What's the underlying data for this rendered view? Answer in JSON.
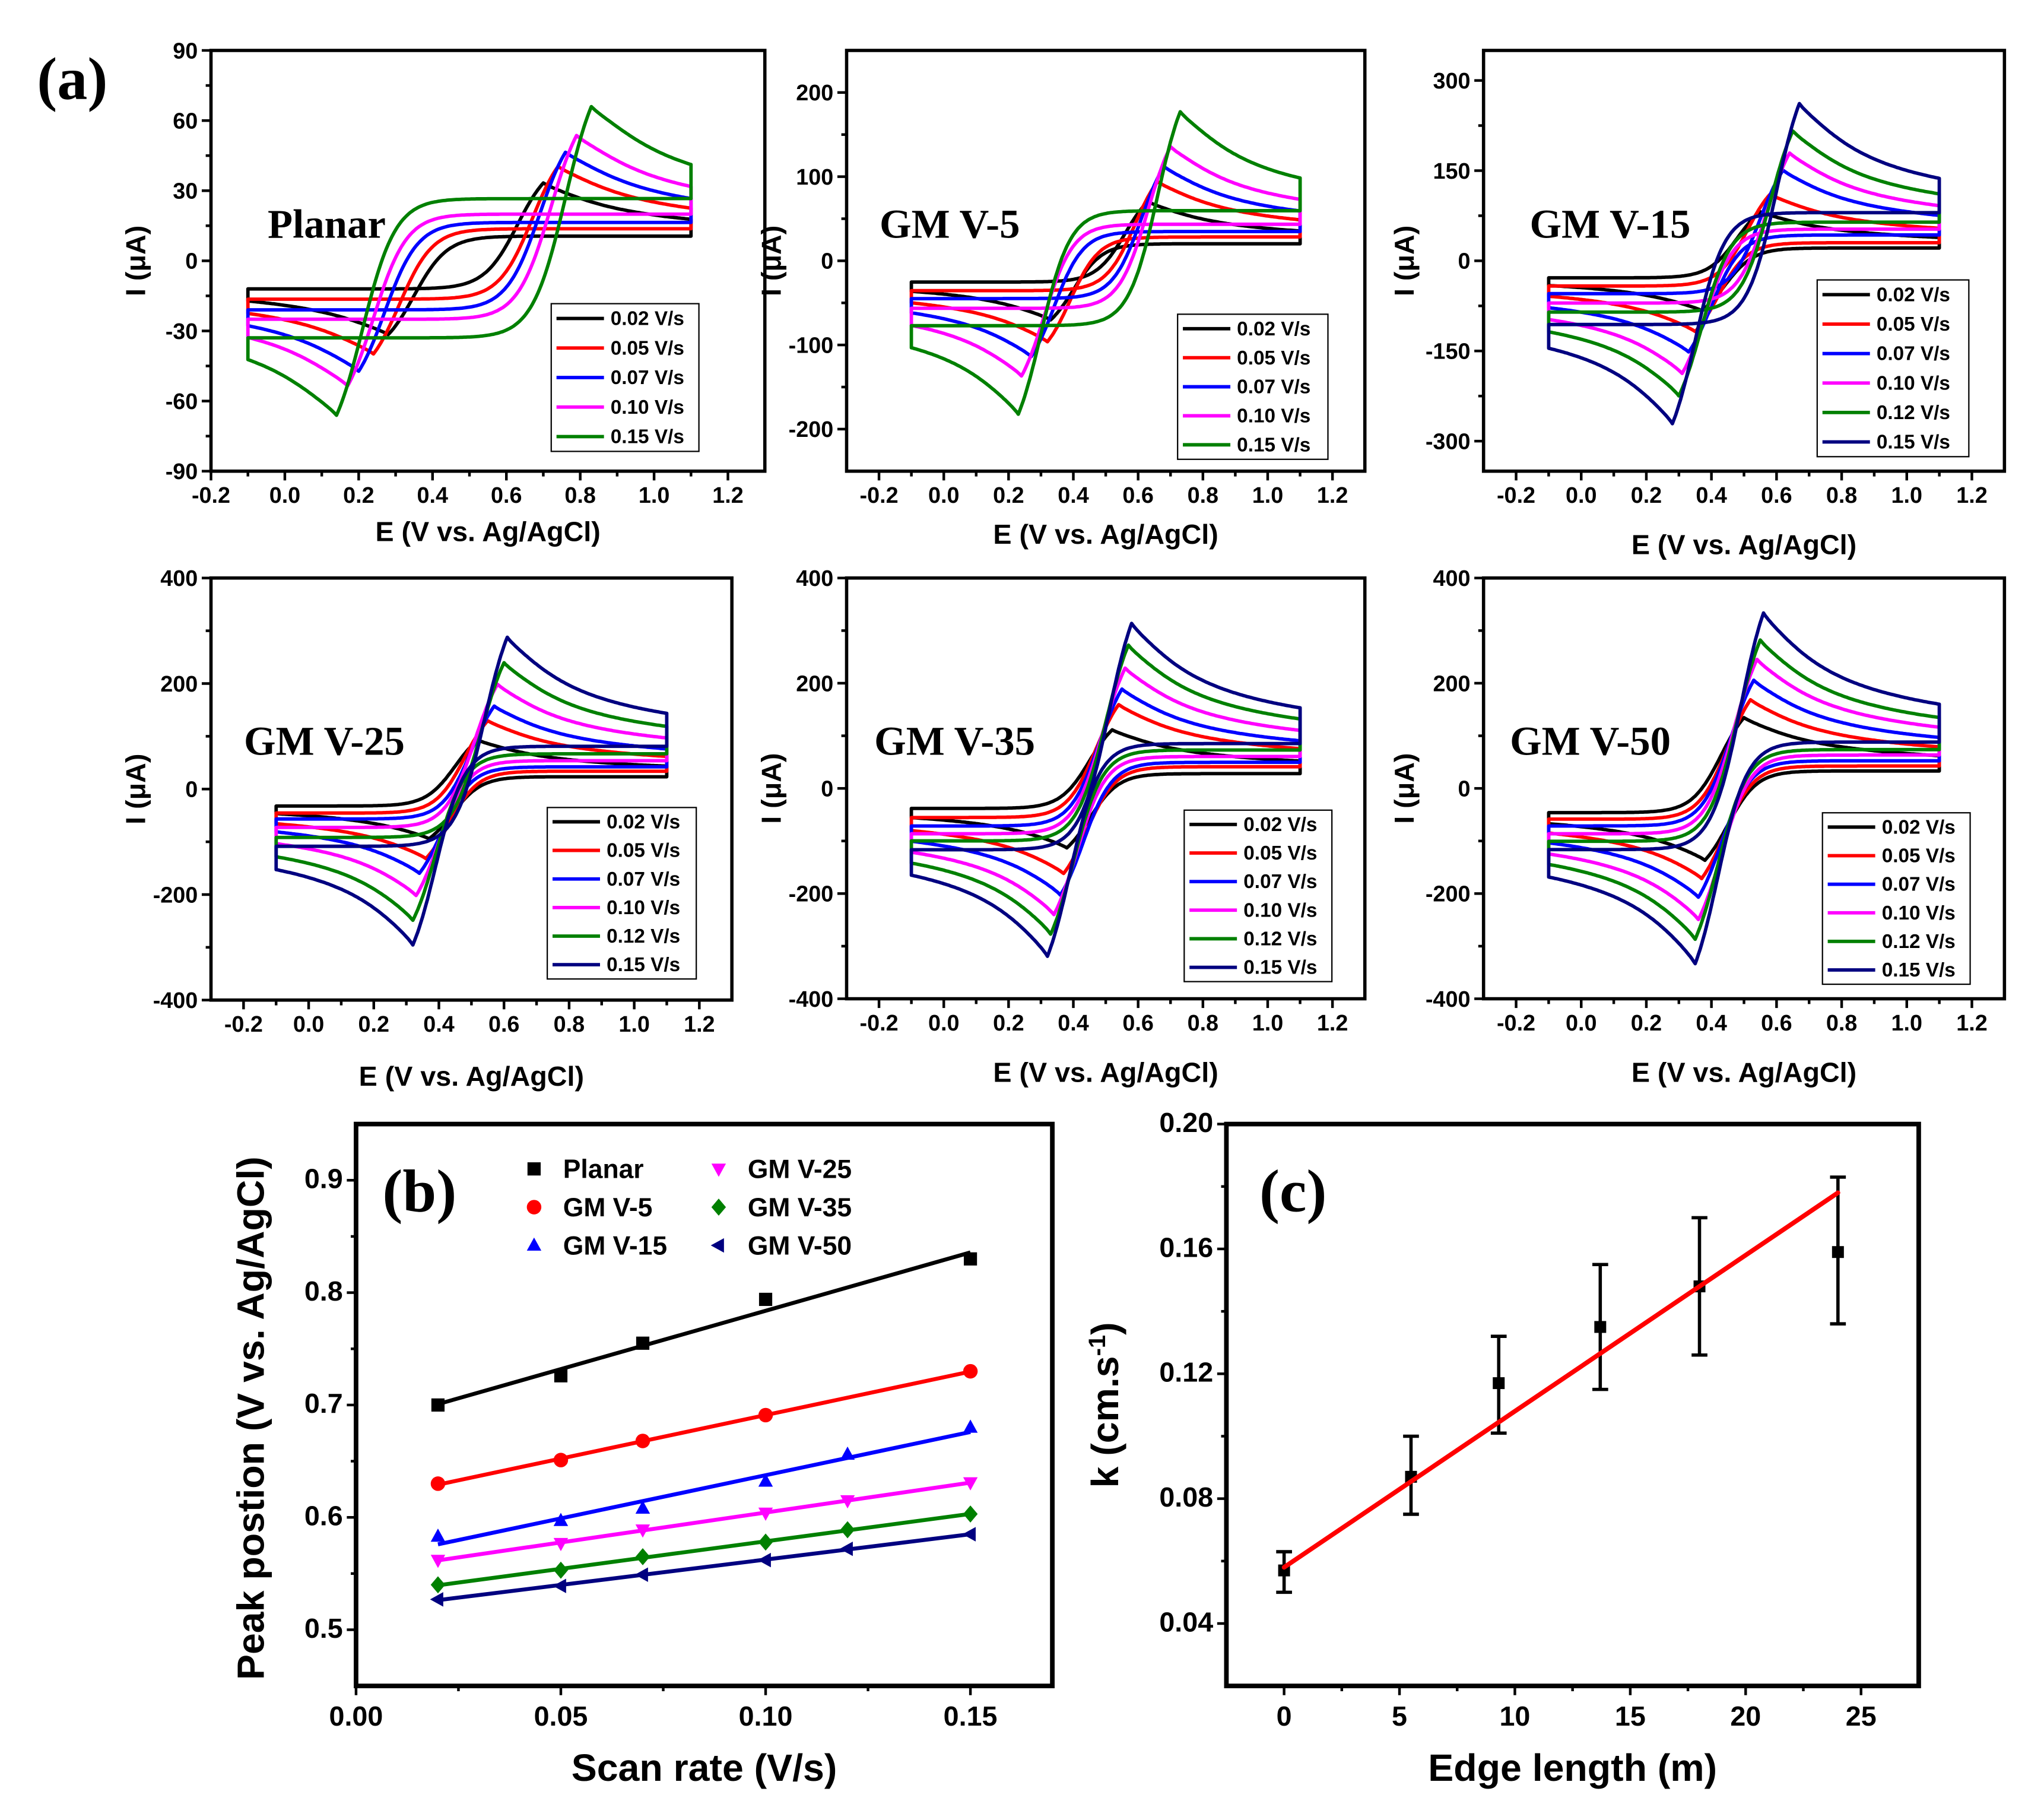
{
  "figure_labels": {
    "a": "(a)",
    "b": "(b)",
    "c": "(c)"
  },
  "chart_data": [
    {
      "type": "line",
      "title": "Planar",
      "xlabel": "E (V vs. Ag/AgCl)",
      "ylabel": "I (μA)",
      "xlim": [
        -0.2,
        1.3
      ],
      "ylim": [
        -90,
        90
      ],
      "xtick_labels": [
        "-0.2",
        "0.0",
        "0.2",
        "0.4",
        "0.6",
        "0.8",
        "1.0",
        "1.2"
      ],
      "ytick_labels": [
        "-90",
        "-60",
        "-30",
        "0",
        "30",
        "60",
        "90"
      ],
      "potential_window": [
        -0.1,
        1.1
      ],
      "legend": "bottom-right",
      "series": [
        {
          "name": "0.02 V/s",
          "color": "#000000",
          "anodic_peak": [
            0.7,
            36
          ],
          "cathodic_peak": [
            0.28,
            -34
          ]
        },
        {
          "name": "0.05 V/s",
          "color": "#ff0000",
          "anodic_peak": [
            0.74,
            44
          ],
          "cathodic_peak": [
            0.24,
            -43
          ]
        },
        {
          "name": "0.07 V/s",
          "color": "#0000ff",
          "anodic_peak": [
            0.76,
            51
          ],
          "cathodic_peak": [
            0.2,
            -51
          ]
        },
        {
          "name": "0.10 V/s",
          "color": "#ff00ff",
          "anodic_peak": [
            0.79,
            59
          ],
          "cathodic_peak": [
            0.17,
            -58
          ]
        },
        {
          "name": "0.15 V/s",
          "color": "#008000",
          "anodic_peak": [
            0.83,
            73
          ],
          "cathodic_peak": [
            0.14,
            -72
          ]
        }
      ]
    },
    {
      "type": "line",
      "title": "GM V-5",
      "xlabel": "E (V vs. Ag/AgCl)",
      "ylabel": "I (μA)",
      "xlim": [
        -0.3,
        1.3
      ],
      "ylim": [
        -250,
        250
      ],
      "xtick_labels": [
        "-0.2",
        "0.0",
        "0.2",
        "0.4",
        "0.6",
        "0.8",
        "1.0",
        "1.2"
      ],
      "ytick_labels": [
        "-200",
        "-100",
        "0",
        "100",
        "200"
      ],
      "potential_window": [
        -0.1,
        1.1
      ],
      "legend": "bottom-right",
      "series": [
        {
          "name": "0.02 V/s",
          "color": "#000000",
          "anodic_peak": [
            0.63,
            76
          ],
          "cathodic_peak": [
            0.33,
            -75
          ]
        },
        {
          "name": "0.05 V/s",
          "color": "#ff0000",
          "anodic_peak": [
            0.66,
            102
          ],
          "cathodic_peak": [
            0.32,
            -103
          ]
        },
        {
          "name": "0.07 V/s",
          "color": "#0000ff",
          "anodic_peak": [
            0.68,
            122
          ],
          "cathodic_peak": [
            0.27,
            -122
          ]
        },
        {
          "name": "0.10 V/s",
          "color": "#ff00ff",
          "anodic_peak": [
            0.7,
            148
          ],
          "cathodic_peak": [
            0.24,
            -147
          ]
        },
        {
          "name": "0.15 V/s",
          "color": "#008000",
          "anodic_peak": [
            0.73,
            194
          ],
          "cathodic_peak": [
            0.23,
            -196
          ]
        }
      ]
    },
    {
      "type": "line",
      "title": "GM V-15",
      "xlabel": "E (V vs. Ag/AgCl)",
      "ylabel": "I (μA)",
      "xlim": [
        -0.3,
        1.3
      ],
      "ylim": [
        -350,
        350
      ],
      "xtick_labels": [
        "-0.2",
        "0.0",
        "0.2",
        "0.4",
        "0.6",
        "0.8",
        "1.0",
        "1.2"
      ],
      "ytick_labels": [
        "-300",
        "-150",
        "0",
        "150",
        "300"
      ],
      "potential_window": [
        -0.1,
        1.1
      ],
      "legend": "bottom-right",
      "series": [
        {
          "name": "0.02 V/s",
          "color": "#000000",
          "anodic_peak": [
            0.55,
            88
          ],
          "cathodic_peak": [
            0.37,
            -88
          ]
        },
        {
          "name": "0.05 V/s",
          "color": "#ff0000",
          "anodic_peak": [
            0.58,
            120
          ],
          "cathodic_peak": [
            0.35,
            -125
          ]
        },
        {
          "name": "0.07 V/s",
          "color": "#0000ff",
          "anodic_peak": [
            0.62,
            163
          ],
          "cathodic_peak": [
            0.33,
            -162
          ]
        },
        {
          "name": "0.10 V/s",
          "color": "#ff00ff",
          "anodic_peak": [
            0.64,
            195
          ],
          "cathodic_peak": [
            0.31,
            -200
          ]
        },
        {
          "name": "0.12 V/s",
          "color": "#008000",
          "anodic_peak": [
            0.65,
            235
          ],
          "cathodic_peak": [
            0.3,
            -240
          ]
        },
        {
          "name": "0.15 V/s",
          "color": "#000080",
          "anodic_peak": [
            0.67,
            285
          ],
          "cathodic_peak": [
            0.28,
            -290
          ]
        }
      ]
    },
    {
      "type": "line",
      "title": "GM V-25",
      "xlabel": "E (V vs. Ag/AgCl)",
      "ylabel": "I (μA)",
      "xlim": [
        -0.3,
        1.3
      ],
      "ylim": [
        -400,
        400
      ],
      "xtick_labels": [
        "-0.2",
        "0.0",
        "0.2",
        "0.4",
        "0.6",
        "0.8",
        "1.0",
        "1.2"
      ],
      "ytick_labels": [
        "-400",
        "-200",
        "0",
        "200",
        "400"
      ],
      "potential_window": [
        -0.1,
        1.1
      ],
      "legend": "bottom-right",
      "series": [
        {
          "name": "0.02 V/s",
          "color": "#000000",
          "anodic_peak": [
            0.52,
            100
          ],
          "cathodic_peak": [
            0.37,
            -100
          ]
        },
        {
          "name": "0.05 V/s",
          "color": "#ff0000",
          "anodic_peak": [
            0.55,
            140
          ],
          "cathodic_peak": [
            0.36,
            -140
          ]
        },
        {
          "name": "0.07 V/s",
          "color": "#0000ff",
          "anodic_peak": [
            0.57,
            170
          ],
          "cathodic_peak": [
            0.34,
            -170
          ]
        },
        {
          "name": "0.10 V/s",
          "color": "#ff00ff",
          "anodic_peak": [
            0.58,
            215
          ],
          "cathodic_peak": [
            0.33,
            -215
          ]
        },
        {
          "name": "0.12 V/s",
          "color": "#008000",
          "anodic_peak": [
            0.6,
            260
          ],
          "cathodic_peak": [
            0.32,
            -265
          ]
        },
        {
          "name": "0.15 V/s",
          "color": "#000080",
          "anodic_peak": [
            0.61,
            312
          ],
          "cathodic_peak": [
            0.32,
            -315
          ]
        }
      ]
    },
    {
      "type": "line",
      "title": "GM V-35",
      "xlabel": "E (V vs. Ag/AgCl)",
      "ylabel": "I (μA)",
      "xlim": [
        -0.3,
        1.3
      ],
      "ylim": [
        -400,
        400
      ],
      "xtick_labels": [
        "-0.2",
        "0.0",
        "0.2",
        "0.4",
        "0.6",
        "0.8",
        "1.0",
        "1.2"
      ],
      "ytick_labels": [
        "-400",
        "-200",
        "0",
        "200",
        "400"
      ],
      "potential_window": [
        -0.1,
        1.1
      ],
      "legend": "bottom-right",
      "series": [
        {
          "name": "0.02 V/s",
          "color": "#000000",
          "anodic_peak": [
            0.52,
            120
          ],
          "cathodic_peak": [
            0.38,
            -120
          ]
        },
        {
          "name": "0.05 V/s",
          "color": "#ff0000",
          "anodic_peak": [
            0.54,
            172
          ],
          "cathodic_peak": [
            0.37,
            -172
          ]
        },
        {
          "name": "0.07 V/s",
          "color": "#0000ff",
          "anodic_peak": [
            0.55,
            205
          ],
          "cathodic_peak": [
            0.36,
            -215
          ]
        },
        {
          "name": "0.10 V/s",
          "color": "#ff00ff",
          "anodic_peak": [
            0.56,
            248
          ],
          "cathodic_peak": [
            0.34,
            -255
          ]
        },
        {
          "name": "0.12 V/s",
          "color": "#008000",
          "anodic_peak": [
            0.57,
            295
          ],
          "cathodic_peak": [
            0.33,
            -295
          ]
        },
        {
          "name": "0.15 V/s",
          "color": "#000080",
          "anodic_peak": [
            0.58,
            340
          ],
          "cathodic_peak": [
            0.32,
            -340
          ]
        }
      ]
    },
    {
      "type": "line",
      "title": "GM V-50",
      "xlabel": "E (V vs. Ag/AgCl)",
      "ylabel": "I (μA)",
      "xlim": [
        -0.3,
        1.3
      ],
      "ylim": [
        -400,
        400
      ],
      "xtick_labels": [
        "-0.2",
        "0.0",
        "0.2",
        "0.4",
        "0.6",
        "0.8",
        "1.0",
        "1.2"
      ],
      "ytick_labels": [
        "-400",
        "-200",
        "0",
        "200",
        "400"
      ],
      "potential_window": [
        -0.1,
        1.1
      ],
      "legend": "bottom-right",
      "series": [
        {
          "name": "0.02 V/s",
          "color": "#000000",
          "anodic_peak": [
            0.5,
            145
          ],
          "cathodic_peak": [
            0.38,
            -145
          ]
        },
        {
          "name": "0.05 V/s",
          "color": "#ff0000",
          "anodic_peak": [
            0.52,
            182
          ],
          "cathodic_peak": [
            0.37,
            -182
          ]
        },
        {
          "name": "0.07 V/s",
          "color": "#0000ff",
          "anodic_peak": [
            0.53,
            222
          ],
          "cathodic_peak": [
            0.36,
            -220
          ]
        },
        {
          "name": "0.10 V/s",
          "color": "#ff00ff",
          "anodic_peak": [
            0.54,
            265
          ],
          "cathodic_peak": [
            0.36,
            -265
          ]
        },
        {
          "name": "0.12 V/s",
          "color": "#008000",
          "anodic_peak": [
            0.55,
            305
          ],
          "cathodic_peak": [
            0.35,
            -305
          ]
        },
        {
          "name": "0.15 V/s",
          "color": "#000080",
          "anodic_peak": [
            0.56,
            360
          ],
          "cathodic_peak": [
            0.35,
            -355
          ]
        }
      ]
    },
    {
      "type": "scatter",
      "xlabel": "Scan rate (V/s)",
      "ylabel": "Peak postion (V vs. Ag/AgCl)",
      "xlim": [
        0,
        0.17
      ],
      "ylim": [
        0.45,
        0.95
      ],
      "xtick_labels": [
        "0.00",
        "0.05",
        "0.10",
        "0.15"
      ],
      "ytick_labels": [
        "0.5",
        "0.6",
        "0.7",
        "0.8",
        "0.9"
      ],
      "legend": "top",
      "linear_fit": true,
      "series": [
        {
          "name": "Planar",
          "marker": "square",
          "color": "#000000",
          "x": [
            0.02,
            0.05,
            0.07,
            0.1,
            0.15
          ],
          "y": [
            0.7,
            0.726,
            0.755,
            0.794,
            0.83
          ]
        },
        {
          "name": "GM V-5",
          "marker": "circle",
          "color": "#ff0000",
          "x": [
            0.02,
            0.05,
            0.07,
            0.1,
            0.15
          ],
          "y": [
            0.63,
            0.651,
            0.668,
            0.691,
            0.73
          ]
        },
        {
          "name": "GM V-15",
          "marker": "triangle-up",
          "color": "#0000ff",
          "x": [
            0.02,
            0.05,
            0.07,
            0.1,
            0.12,
            0.15
          ],
          "y": [
            0.583,
            0.597,
            0.608,
            0.632,
            0.656,
            0.68
          ]
        },
        {
          "name": "GM V-25",
          "marker": "triangle-down",
          "color": "#ff00ff",
          "x": [
            0.02,
            0.05,
            0.07,
            0.1,
            0.12,
            0.15
          ],
          "y": [
            0.562,
            0.577,
            0.589,
            0.604,
            0.615,
            0.631
          ]
        },
        {
          "name": "GM V-35",
          "marker": "diamond",
          "color": "#008000",
          "x": [
            0.02,
            0.05,
            0.07,
            0.1,
            0.12,
            0.15
          ],
          "y": [
            0.54,
            0.553,
            0.565,
            0.578,
            0.589,
            0.603
          ]
        },
        {
          "name": "GM V-50",
          "marker": "triangle-left",
          "color": "#000080",
          "x": [
            0.02,
            0.05,
            0.07,
            0.1,
            0.12,
            0.15
          ],
          "y": [
            0.527,
            0.539,
            0.549,
            0.562,
            0.572,
            0.585
          ]
        }
      ]
    },
    {
      "type": "scatter",
      "xlabel": "Edge length (m)",
      "ylabel": "k (cm.s",
      "ylabel_superscript": "-1",
      "ylabel_suffix": ")",
      "xlim": [
        -2.5,
        27.5
      ],
      "ylim": [
        0.02,
        0.2
      ],
      "xtick_labels": [
        "0",
        "5",
        "10",
        "15",
        "20",
        "25"
      ],
      "ytick_labels": [
        "0.04",
        "0.08",
        "0.12",
        "0.16",
        "0.20"
      ],
      "x": [
        0,
        5.5,
        9.3,
        13.7,
        18,
        24
      ],
      "y": [
        0.057,
        0.087,
        0.117,
        0.135,
        0.148,
        0.159
      ],
      "error_bars": [
        [
          0.05,
          0.063
        ],
        [
          0.075,
          0.1
        ],
        [
          0.101,
          0.132
        ],
        [
          0.115,
          0.155
        ],
        [
          0.126,
          0.17
        ],
        [
          0.136,
          0.183
        ]
      ],
      "marker_color": "#000000",
      "fit_line": {
        "color": "#ff0000",
        "x": [
          0,
          24
        ],
        "y": [
          0.058,
          0.178
        ]
      }
    }
  ]
}
